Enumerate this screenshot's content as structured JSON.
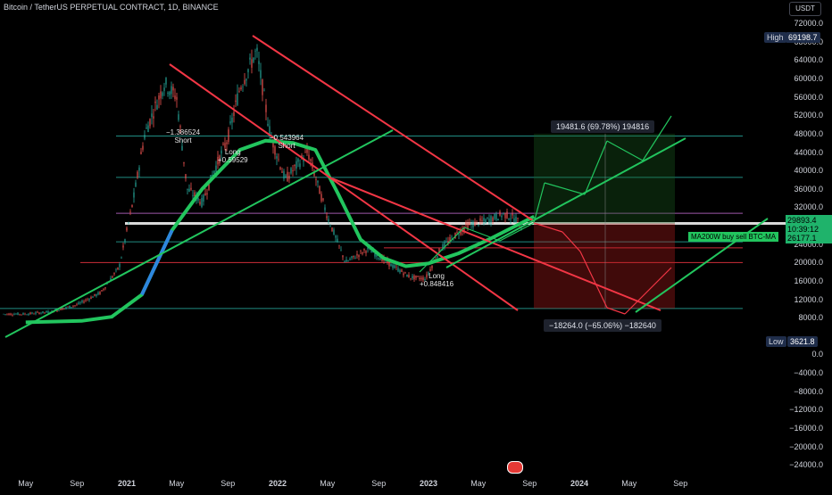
{
  "header": {
    "title": "Bitcoin / TetherUS PERPETUAL CONTRACT, 1D, BINANCE",
    "currency": "USDT"
  },
  "high": {
    "label": "High",
    "value": "69198.7"
  },
  "low": {
    "label": "Low",
    "value": "3621.8"
  },
  "price_tags": [
    {
      "value": "29893.4"
    },
    {
      "value": "10:39:12"
    },
    {
      "value": "26177.1"
    }
  ],
  "ma_label": "MA200W buy sell BTC-MA",
  "target_box": "19481.6 (69.78%) 194816",
  "stop_box": "−18264.0 (−65.06%) −182640",
  "annotations": [
    {
      "text": "−1.386524\nShort"
    },
    {
      "text": "Long\n+0.59529"
    },
    {
      "text": "−0.543964\nShort"
    },
    {
      "text": "Long\n+0.848416"
    }
  ],
  "colors": {
    "up": "#26a69a",
    "down": "#ef5350",
    "green_line": "#22c55e",
    "red_line": "#f23645",
    "ma_blue": "#2e86de"
  },
  "chart_data": {
    "type": "candlestick",
    "title": "Bitcoin / TetherUS PERPETUAL CONTRACT, 1D, BINANCE",
    "x_ticks": [
      "May",
      "Sep",
      "2021",
      "May",
      "Sep",
      "2022",
      "May",
      "Sep",
      "2023",
      "May",
      "Sep",
      "2024",
      "May",
      "Sep"
    ],
    "y_ticks": [
      "72000.0",
      "68000.0",
      "64000.0",
      "60000.0",
      "56000.0",
      "52000.0",
      "48000.0",
      "44000.0",
      "40000.0",
      "36000.0",
      "32000.0",
      "24000.0",
      "20000.0",
      "16000.0",
      "12000.0",
      "8000.0",
      "0.0",
      "−4000.0",
      "−8000.0",
      "−12000.0",
      "−16000.0",
      "−20000.0",
      "−24000.0"
    ],
    "ylim": [
      -26000,
      74000
    ],
    "price_path": [
      [
        2020.33,
        8800
      ],
      [
        2020.5,
        9300
      ],
      [
        2020.67,
        10800
      ],
      [
        2020.83,
        13500
      ],
      [
        2020.95,
        19000
      ],
      [
        2021.04,
        33000
      ],
      [
        2021.12,
        48000
      ],
      [
        2021.25,
        59000
      ],
      [
        2021.33,
        56000
      ],
      [
        2021.4,
        36000
      ],
      [
        2021.5,
        33000
      ],
      [
        2021.58,
        40000
      ],
      [
        2021.67,
        47000
      ],
      [
        2021.75,
        58000
      ],
      [
        2021.86,
        66000
      ],
      [
        2021.95,
        48000
      ],
      [
        2022.05,
        38000
      ],
      [
        2022.2,
        44000
      ],
      [
        2022.33,
        30000
      ],
      [
        2022.45,
        20000
      ],
      [
        2022.6,
        23000
      ],
      [
        2022.75,
        19500
      ],
      [
        2022.88,
        16800
      ],
      [
        2022.98,
        16500
      ],
      [
        2023.08,
        23000
      ],
      [
        2023.25,
        28000
      ],
      [
        2023.37,
        29000
      ],
      [
        2023.5,
        30500
      ],
      [
        2023.58,
        29500
      ],
      [
        2023.65,
        26100
      ]
    ],
    "ma200w": [
      [
        2020.33,
        7000
      ],
      [
        2020.7,
        7300
      ],
      [
        2020.9,
        8200
      ],
      [
        2021.1,
        13000
      ],
      [
        2021.3,
        27000
      ],
      [
        2021.5,
        36000
      ],
      [
        2021.75,
        44500
      ],
      [
        2021.92,
        46500
      ],
      [
        2022.1,
        46000
      ],
      [
        2022.25,
        44500
      ],
      [
        2022.4,
        35000
      ],
      [
        2022.55,
        25000
      ],
      [
        2022.7,
        21000
      ],
      [
        2022.85,
        19200
      ],
      [
        2023.0,
        19800
      ],
      [
        2023.2,
        22000
      ],
      [
        2023.4,
        25000
      ],
      [
        2023.58,
        28000
      ],
      [
        2023.7,
        30000
      ]
    ],
    "horizontal_levels": [
      {
        "price": 47500,
        "color": "#26a69a"
      },
      {
        "price": 38500,
        "color": "#26a69a"
      },
      {
        "price": 30700,
        "color": "#ba68c8"
      },
      {
        "price": 28500,
        "color": "#ffffff"
      },
      {
        "price": 24500,
        "color": "#26a69a"
      },
      {
        "price": 23200,
        "color": "#f23645"
      },
      {
        "price": 20000,
        "color": "#f23645"
      },
      {
        "price": 10000,
        "color": "#26a69a"
      }
    ]
  }
}
